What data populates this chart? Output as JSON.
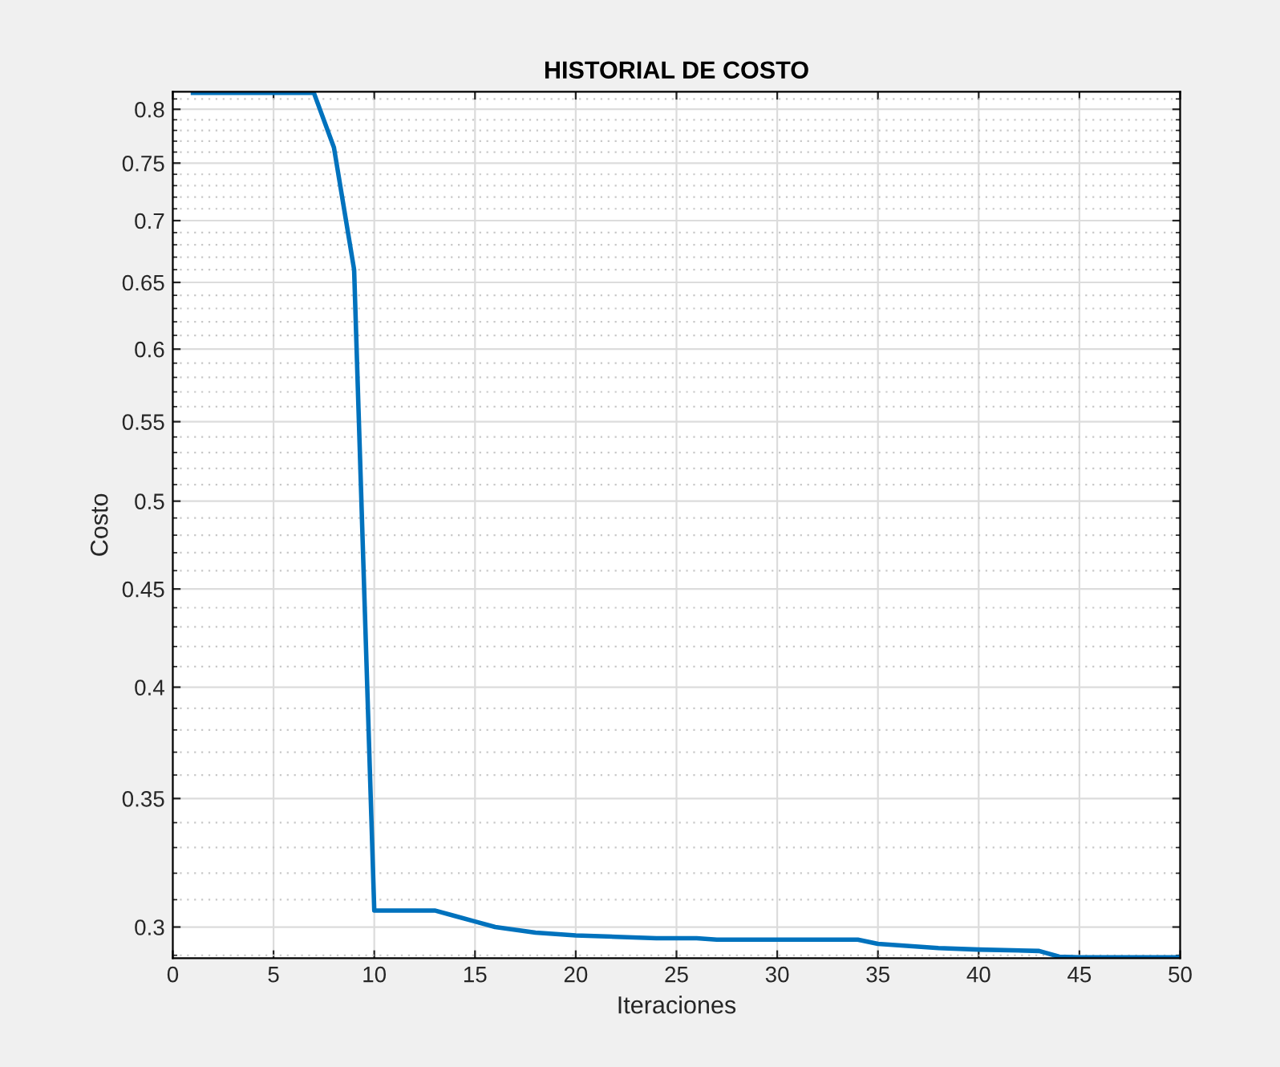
{
  "chart_data": {
    "type": "line",
    "title": "HISTORIAL DE COSTO",
    "xlabel": "Iteraciones",
    "ylabel": "Costo",
    "x": [
      1,
      2,
      3,
      4,
      5,
      6,
      7,
      8,
      9,
      10,
      11,
      12,
      13,
      14,
      15,
      16,
      17,
      18,
      19,
      20,
      22,
      24,
      26,
      27,
      30,
      34,
      35,
      36,
      37,
      38,
      40,
      43,
      44,
      45,
      50
    ],
    "series": [
      {
        "color": "#0072bd",
        "values": [
          0.816,
          0.816,
          0.816,
          0.816,
          0.816,
          0.816,
          0.816,
          0.764,
          0.66,
          0.306,
          0.306,
          0.306,
          0.306,
          0.304,
          0.302,
          0.3,
          0.299,
          0.298,
          0.2975,
          0.297,
          0.2965,
          0.296,
          0.296,
          0.2955,
          0.2955,
          0.2955,
          0.294,
          0.2935,
          0.293,
          0.2925,
          0.292,
          0.2915,
          0.2895,
          0.2893,
          0.2893
        ]
      }
    ],
    "log": "y",
    "grid": true,
    "marker": "none",
    "line_style": "solid",
    "xlim": [
      0,
      50
    ],
    "xticks": [
      0,
      5,
      10,
      15,
      20,
      25,
      30,
      35,
      40,
      45,
      50
    ],
    "ylim": [
      0.289,
      0.817
    ],
    "yticks": [
      0.3,
      0.35,
      0.4,
      0.45,
      0.5,
      0.55,
      0.6,
      0.65,
      0.7,
      0.75,
      0.8
    ]
  }
}
